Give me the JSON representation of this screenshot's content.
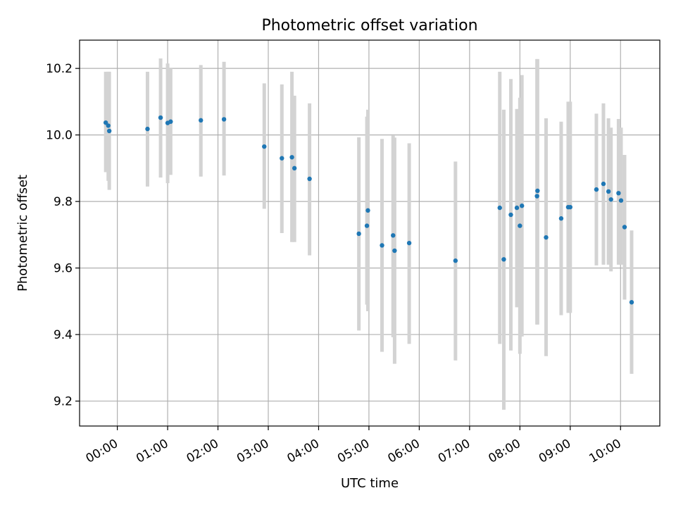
{
  "chart_data": {
    "type": "scatter",
    "title": "Photometric offset variation",
    "xlabel": "UTC time",
    "ylabel": "Photometric offset",
    "x_unit": "hours",
    "xlim": [
      -0.75,
      10.78
    ],
    "ylim": [
      9.125,
      10.285
    ],
    "x_ticks": [
      0,
      1,
      2,
      3,
      4,
      5,
      6,
      7,
      8,
      9,
      10
    ],
    "x_tick_labels": [
      "00:00",
      "01:00",
      "02:00",
      "03:00",
      "04:00",
      "05:00",
      "06:00",
      "07:00",
      "08:00",
      "09:00",
      "10:00"
    ],
    "y_ticks": [
      9.2,
      9.4,
      9.6,
      9.8,
      10.0,
      10.2
    ],
    "y_tick_labels": [
      "9.2",
      "9.4",
      "9.6",
      "9.8",
      "10.0",
      "10.2"
    ],
    "grid": true,
    "colors": {
      "point": "#1f77b4",
      "errorbar": "#d3d3d3",
      "grid": "#b0b0b0"
    },
    "series": [
      {
        "name": "offset",
        "points": [
          {
            "x": -0.23,
            "y": 10.037,
            "lo": 9.888,
            "hi": 10.19
          },
          {
            "x": -0.18,
            "y": 10.028,
            "lo": 9.862,
            "hi": 10.19
          },
          {
            "x": -0.16,
            "y": 10.012,
            "lo": 9.835,
            "hi": 10.19
          },
          {
            "x": 0.6,
            "y": 10.018,
            "lo": 9.845,
            "hi": 10.19
          },
          {
            "x": 0.86,
            "y": 10.052,
            "lo": 9.872,
            "hi": 10.23
          },
          {
            "x": 1.0,
            "y": 10.036,
            "lo": 9.855,
            "hi": 10.215
          },
          {
            "x": 1.06,
            "y": 10.04,
            "lo": 9.88,
            "hi": 10.2
          },
          {
            "x": 1.66,
            "y": 10.044,
            "lo": 9.875,
            "hi": 10.21
          },
          {
            "x": 2.12,
            "y": 10.047,
            "lo": 9.878,
            "hi": 10.22
          },
          {
            "x": 2.92,
            "y": 9.965,
            "lo": 9.778,
            "hi": 10.155
          },
          {
            "x": 3.27,
            "y": 9.93,
            "lo": 9.705,
            "hi": 10.152
          },
          {
            "x": 3.47,
            "y": 9.933,
            "lo": 9.678,
            "hi": 10.19
          },
          {
            "x": 3.52,
            "y": 9.9,
            "lo": 9.678,
            "hi": 10.118
          },
          {
            "x": 3.82,
            "y": 9.868,
            "lo": 9.638,
            "hi": 10.095
          },
          {
            "x": 4.8,
            "y": 9.703,
            "lo": 9.412,
            "hi": 9.993
          },
          {
            "x": 4.96,
            "y": 9.727,
            "lo": 9.49,
            "hi": 10.055
          },
          {
            "x": 4.98,
            "y": 9.773,
            "lo": 9.47,
            "hi": 10.076
          },
          {
            "x": 5.26,
            "y": 9.668,
            "lo": 9.348,
            "hi": 9.988
          },
          {
            "x": 5.48,
            "y": 9.698,
            "lo": 9.392,
            "hi": 9.998
          },
          {
            "x": 5.51,
            "y": 9.652,
            "lo": 9.312,
            "hi": 9.992
          },
          {
            "x": 5.8,
            "y": 9.675,
            "lo": 9.372,
            "hi": 9.975
          },
          {
            "x": 6.72,
            "y": 9.622,
            "lo": 9.322,
            "hi": 9.92
          },
          {
            "x": 7.6,
            "y": 9.781,
            "lo": 9.372,
            "hi": 10.19
          },
          {
            "x": 7.68,
            "y": 9.626,
            "lo": 9.174,
            "hi": 10.076
          },
          {
            "x": 7.82,
            "y": 9.76,
            "lo": 9.352,
            "hi": 10.168
          },
          {
            "x": 7.94,
            "y": 9.781,
            "lo": 9.482,
            "hi": 10.078
          },
          {
            "x": 8.0,
            "y": 9.727,
            "lo": 9.342,
            "hi": 10.112
          },
          {
            "x": 8.04,
            "y": 9.787,
            "lo": 9.394,
            "hi": 10.18
          },
          {
            "x": 8.34,
            "y": 9.816,
            "lo": 9.43,
            "hi": 10.228
          },
          {
            "x": 8.35,
            "y": 9.832,
            "lo": 9.43,
            "hi": 10.228
          },
          {
            "x": 8.52,
            "y": 9.692,
            "lo": 9.335,
            "hi": 10.05
          },
          {
            "x": 8.82,
            "y": 9.749,
            "lo": 9.458,
            "hi": 10.04
          },
          {
            "x": 8.96,
            "y": 9.783,
            "lo": 9.465,
            "hi": 10.1
          },
          {
            "x": 9.0,
            "y": 9.783,
            "lo": 9.465,
            "hi": 10.1
          },
          {
            "x": 9.52,
            "y": 9.836,
            "lo": 9.608,
            "hi": 10.064
          },
          {
            "x": 9.66,
            "y": 9.853,
            "lo": 9.61,
            "hi": 10.095
          },
          {
            "x": 9.76,
            "y": 9.83,
            "lo": 9.61,
            "hi": 10.05
          },
          {
            "x": 9.81,
            "y": 9.806,
            "lo": 9.59,
            "hi": 10.022
          },
          {
            "x": 9.96,
            "y": 9.825,
            "lo": 9.61,
            "hi": 10.048
          },
          {
            "x": 10.01,
            "y": 9.803,
            "lo": 9.61,
            "hi": 10.022
          },
          {
            "x": 10.08,
            "y": 9.723,
            "lo": 9.505,
            "hi": 9.94
          },
          {
            "x": 10.22,
            "y": 9.497,
            "lo": 9.282,
            "hi": 9.713
          }
        ]
      }
    ]
  }
}
